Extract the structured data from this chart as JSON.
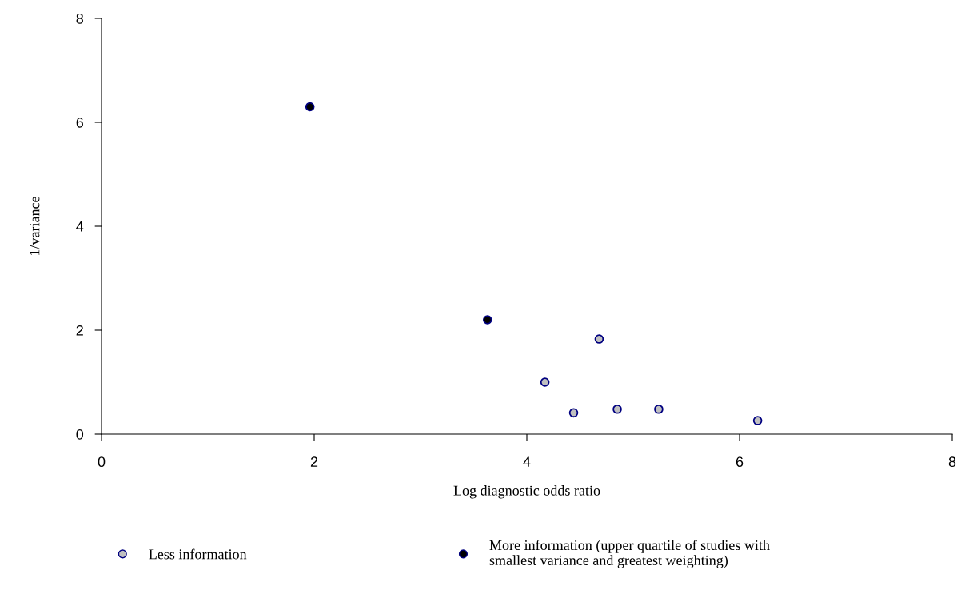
{
  "chart_data": {
    "type": "scatter",
    "xlabel": "Log diagnostic odds ratio",
    "ylabel": "1/variance",
    "xlim": [
      0,
      8
    ],
    "xticks": [
      0,
      2,
      4,
      6,
      8
    ],
    "ylim": [
      0,
      8
    ],
    "yticks": [
      0,
      2,
      4,
      6,
      8
    ],
    "grid": false,
    "legend": "bottom",
    "marker": "circle",
    "series": [
      {
        "name": "Less information",
        "color": "#c0c0c0",
        "x": [
          4.68,
          4.17,
          4.44,
          4.85,
          5.24,
          6.17
        ],
        "values": [
          1.83,
          1.0,
          0.41,
          0.48,
          0.48,
          0.26
        ]
      },
      {
        "name": "More information (upper quartile of studies with smallest variance and greatest weighting)",
        "color": "#000000",
        "x": [
          1.96,
          3.63
        ],
        "values": [
          6.3,
          2.2
        ]
      }
    ]
  }
}
